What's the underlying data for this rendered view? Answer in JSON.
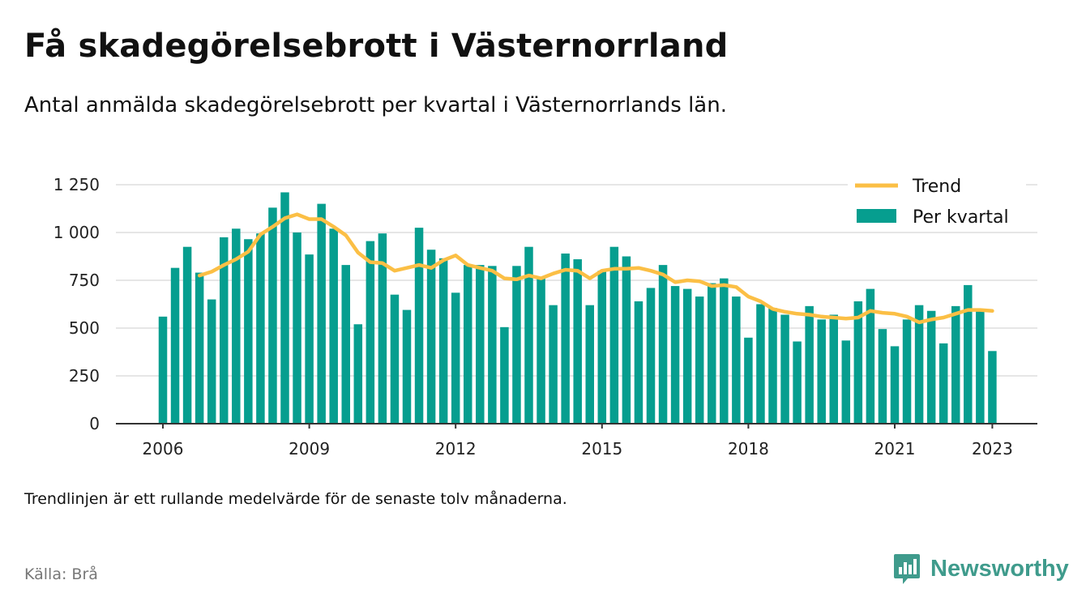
{
  "header": {
    "title": "Få skadegörelsebrott i Västernorrland",
    "subtitle": "Antal anmälda skadegörelsebrott per kvartal i Västernorrlands län."
  },
  "footer": {
    "note": "Trendlinjen är ett rullande medelvärde för de senaste tolv månaderna.",
    "source": "Källa: Brå",
    "brand": "Newsworthy"
  },
  "colors": {
    "bars": "#069e8f",
    "trend": "#fbbf45",
    "grid": "#dddddd",
    "axis": "#333333",
    "brand": "#3f9b8c"
  },
  "chart_data": {
    "type": "bar",
    "x_start": 2006,
    "ylim": [
      0,
      1250
    ],
    "yticks": [
      0,
      250,
      500,
      750,
      1000,
      1250
    ],
    "ytick_labels": [
      "0",
      "250",
      "500",
      "750",
      "1 000",
      "1 250"
    ],
    "xticks": [
      2006,
      2009,
      2012,
      2015,
      2018,
      2021,
      2023
    ],
    "xtick_labels": [
      "2006",
      "2009",
      "2012",
      "2015",
      "2018",
      "2021",
      "2023"
    ],
    "grid": true,
    "legend": {
      "position": "top-right",
      "items": [
        {
          "label": "Trend",
          "kind": "line"
        },
        {
          "label": "Per kvartal",
          "kind": "bar"
        }
      ]
    },
    "series": [
      {
        "name": "Per kvartal",
        "type": "bar",
        "values": [
          560,
          815,
          925,
          790,
          650,
          975,
          1020,
          965,
          995,
          1130,
          1210,
          1000,
          885,
          1150,
          1020,
          830,
          520,
          955,
          995,
          675,
          595,
          1025,
          910,
          865,
          685,
          830,
          830,
          825,
          505,
          825,
          925,
          765,
          620,
          890,
          860,
          620,
          800,
          925,
          875,
          640,
          710,
          830,
          720,
          705,
          665,
          735,
          760,
          665,
          450,
          625,
          605,
          570,
          430,
          615,
          545,
          570,
          435,
          640,
          705,
          495,
          405,
          545,
          620,
          590,
          420,
          615,
          725,
          590,
          380
        ]
      },
      {
        "name": "Trend",
        "type": "line",
        "values": [
          null,
          null,
          null,
          775,
          795,
          830,
          860,
          900,
          990,
          1030,
          1075,
          1095,
          1070,
          1070,
          1030,
          985,
          895,
          845,
          840,
          800,
          815,
          830,
          815,
          855,
          880,
          830,
          815,
          800,
          760,
          755,
          775,
          760,
          785,
          805,
          800,
          760,
          800,
          810,
          810,
          815,
          800,
          780,
          740,
          750,
          745,
          720,
          725,
          715,
          665,
          640,
          600,
          585,
          575,
          570,
          560,
          555,
          550,
          555,
          590,
          580,
          575,
          560,
          530,
          545,
          555,
          575,
          595,
          595,
          590
        ]
      }
    ]
  }
}
